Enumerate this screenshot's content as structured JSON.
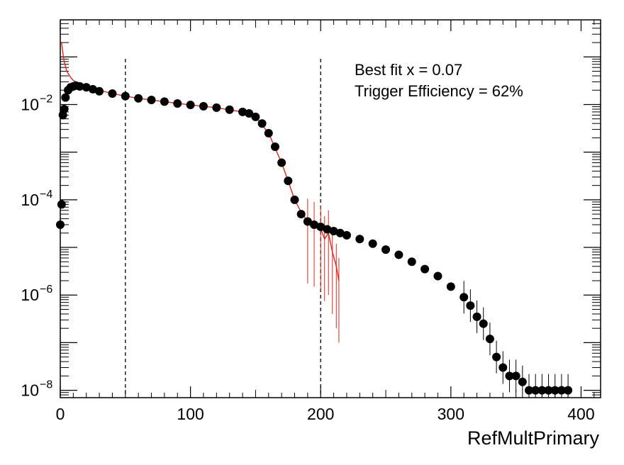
{
  "chart_data": {
    "type": "scatter",
    "title": "",
    "xlabel": "RefMultPrimary",
    "ylabel": "",
    "xlim": [
      0,
      415
    ],
    "ylog": true,
    "ylim": [
      7e-09,
      0.6
    ],
    "grid": false,
    "x_ticks": [
      0,
      100,
      200,
      300,
      400
    ],
    "x_tick_labels": [
      "0",
      "100",
      "200",
      "300",
      "400"
    ],
    "y_ticks": [
      1e-08,
      1e-06,
      0.0001,
      0.01
    ],
    "y_tick_labels": [
      {
        "base": "10",
        "exp": "−8"
      },
      {
        "base": "10",
        "exp": "−6"
      },
      {
        "base": "10",
        "exp": "−4"
      },
      {
        "base": "10",
        "exp": "−2"
      }
    ],
    "annotations": [
      "Best fit x = 0.07",
      "Trigger Efficiency = 62%"
    ],
    "vertical_lines": [
      50,
      200
    ],
    "colors": {
      "data": "#000000",
      "fit": "#e0251b",
      "lines": "#000000"
    },
    "series": [
      {
        "style": "markers",
        "x": [
          0,
          1,
          2,
          3,
          4,
          6,
          8,
          10,
          12,
          15,
          20,
          25,
          30,
          40,
          50,
          60,
          70,
          80,
          90,
          100,
          110,
          120,
          130,
          140,
          145,
          150,
          155,
          160,
          165,
          170,
          175,
          180,
          185,
          190,
          195,
          200,
          205,
          210,
          215,
          220,
          230,
          240,
          250,
          260,
          270,
          280,
          290,
          300,
          310,
          315,
          320,
          325,
          330,
          335,
          340,
          345,
          350,
          355,
          360,
          365,
          370,
          375,
          380,
          385,
          390
        ],
        "y": [
          3e-05,
          8e-05,
          0.006,
          0.008,
          0.014,
          0.02,
          0.023,
          0.024,
          0.025,
          0.024,
          0.023,
          0.021,
          0.019,
          0.017,
          0.015,
          0.0135,
          0.0125,
          0.0115,
          0.0105,
          0.0098,
          0.0092,
          0.0086,
          0.0078,
          0.007,
          0.0065,
          0.0055,
          0.004,
          0.0025,
          0.0013,
          0.0006,
          0.00025,
          0.0001,
          5e-05,
          3.5e-05,
          3e-05,
          2.7e-05,
          2.4e-05,
          2.2e-05,
          2e-05,
          1.8e-05,
          1.5e-05,
          1.2e-05,
          9e-06,
          7e-06,
          5e-06,
          3.5e-06,
          2.5e-06,
          1.5e-06,
          9e-07,
          6e-07,
          3.5e-07,
          2.5e-07,
          1.2e-07,
          5e-08,
          3e-08,
          2e-08,
          2e-08,
          1.5e-08,
          1e-08,
          1e-08,
          1e-08,
          1e-08,
          1e-08,
          1e-08,
          1e-08
        ]
      },
      {
        "style": "fit",
        "x": [
          1,
          2,
          3,
          5,
          8,
          10,
          15,
          20,
          30,
          40,
          50,
          60,
          80,
          100,
          120,
          140,
          150,
          160,
          170,
          175,
          180,
          185,
          190,
          195,
          200,
          203,
          206,
          209,
          212,
          214
        ],
        "y": [
          0.2,
          0.12,
          0.08,
          0.05,
          0.037,
          0.032,
          0.027,
          0.024,
          0.02,
          0.017,
          0.015,
          0.0135,
          0.0115,
          0.0098,
          0.0086,
          0.007,
          0.0055,
          0.0025,
          0.0006,
          0.00025,
          0.0001,
          5.5e-05,
          3.5e-05,
          3e-05,
          2.5e-05,
          1.5e-05,
          2e-05,
          8e-06,
          4e-06,
          2e-06
        ]
      }
    ]
  }
}
